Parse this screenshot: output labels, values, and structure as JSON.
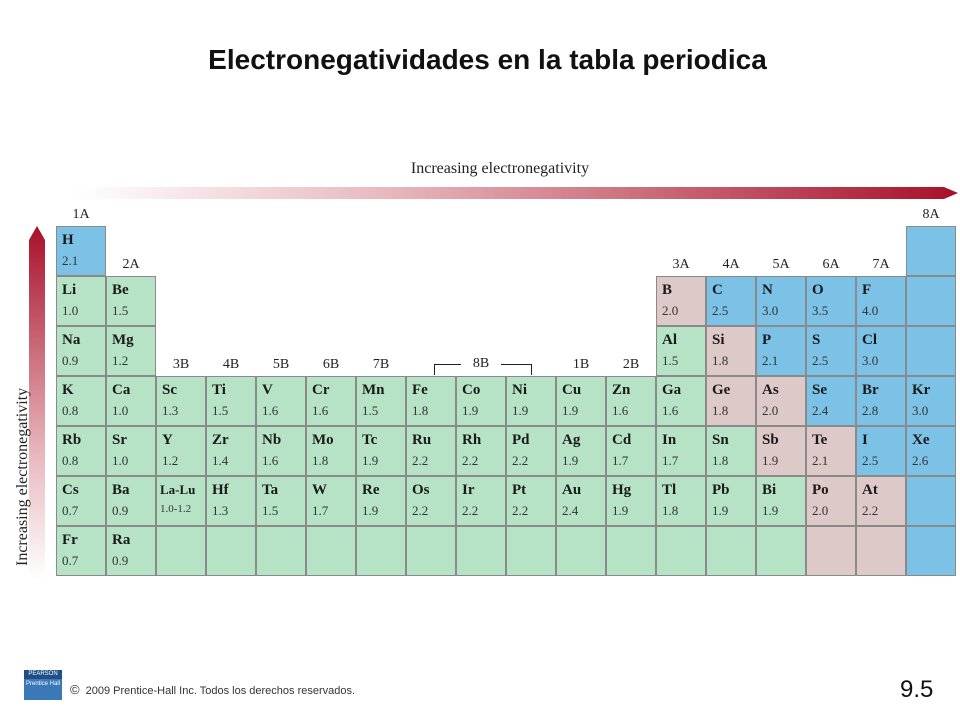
{
  "title": "Electronegatividades en la tabla periodica",
  "arrows": {
    "horizontal_label": "Increasing electronegativity",
    "vertical_label": "Increasing electronegativity",
    "color": "#a8102a"
  },
  "colors": {
    "green": "#b6e3c5",
    "blue": "#7cc2e6",
    "pink": "#dcc9c8"
  },
  "group_labels": [
    {
      "label": "1A",
      "col": 0,
      "row": -1
    },
    {
      "label": "2A",
      "col": 1,
      "row": 0
    },
    {
      "label": "3B",
      "col": 2,
      "row": 2
    },
    {
      "label": "4B",
      "col": 3,
      "row": 2
    },
    {
      "label": "5B",
      "col": 4,
      "row": 2
    },
    {
      "label": "6B",
      "col": 5,
      "row": 2
    },
    {
      "label": "7B",
      "col": 6,
      "row": 2
    },
    {
      "label": "1B",
      "col": 10,
      "row": 2
    },
    {
      "label": "2B",
      "col": 11,
      "row": 2
    },
    {
      "label": "3A",
      "col": 12,
      "row": 0
    },
    {
      "label": "4A",
      "col": 13,
      "row": 0
    },
    {
      "label": "5A",
      "col": 14,
      "row": 0
    },
    {
      "label": "6A",
      "col": 15,
      "row": 0
    },
    {
      "label": "7A",
      "col": 16,
      "row": 0
    },
    {
      "label": "8A",
      "col": 17,
      "row": -1
    }
  ],
  "bracket_label": "8B",
  "elements": [
    {
      "symbol": "H",
      "value": "2.1",
      "row": 0,
      "col": 0,
      "color": "blue"
    },
    {
      "symbol": "Li",
      "value": "1.0",
      "row": 1,
      "col": 0,
      "color": "green"
    },
    {
      "symbol": "Be",
      "value": "1.5",
      "row": 1,
      "col": 1,
      "color": "green"
    },
    {
      "symbol": "B",
      "value": "2.0",
      "row": 1,
      "col": 12,
      "color": "pink"
    },
    {
      "symbol": "C",
      "value": "2.5",
      "row": 1,
      "col": 13,
      "color": "blue"
    },
    {
      "symbol": "N",
      "value": "3.0",
      "row": 1,
      "col": 14,
      "color": "blue"
    },
    {
      "symbol": "O",
      "value": "3.5",
      "row": 1,
      "col": 15,
      "color": "blue"
    },
    {
      "symbol": "F",
      "value": "4.0",
      "row": 1,
      "col": 16,
      "color": "blue"
    },
    {
      "symbol": "Na",
      "value": "0.9",
      "row": 2,
      "col": 0,
      "color": "green"
    },
    {
      "symbol": "Mg",
      "value": "1.2",
      "row": 2,
      "col": 1,
      "color": "green"
    },
    {
      "symbol": "Al",
      "value": "1.5",
      "row": 2,
      "col": 12,
      "color": "green"
    },
    {
      "symbol": "Si",
      "value": "1.8",
      "row": 2,
      "col": 13,
      "color": "pink"
    },
    {
      "symbol": "P",
      "value": "2.1",
      "row": 2,
      "col": 14,
      "color": "blue"
    },
    {
      "symbol": "S",
      "value": "2.5",
      "row": 2,
      "col": 15,
      "color": "blue"
    },
    {
      "symbol": "Cl",
      "value": "3.0",
      "row": 2,
      "col": 16,
      "color": "blue"
    },
    {
      "symbol": "K",
      "value": "0.8",
      "row": 3,
      "col": 0,
      "color": "green"
    },
    {
      "symbol": "Ca",
      "value": "1.0",
      "row": 3,
      "col": 1,
      "color": "green"
    },
    {
      "symbol": "Sc",
      "value": "1.3",
      "row": 3,
      "col": 2,
      "color": "green"
    },
    {
      "symbol": "Ti",
      "value": "1.5",
      "row": 3,
      "col": 3,
      "color": "green"
    },
    {
      "symbol": "V",
      "value": "1.6",
      "row": 3,
      "col": 4,
      "color": "green"
    },
    {
      "symbol": "Cr",
      "value": "1.6",
      "row": 3,
      "col": 5,
      "color": "green"
    },
    {
      "symbol": "Mn",
      "value": "1.5",
      "row": 3,
      "col": 6,
      "color": "green"
    },
    {
      "symbol": "Fe",
      "value": "1.8",
      "row": 3,
      "col": 7,
      "color": "green"
    },
    {
      "symbol": "Co",
      "value": "1.9",
      "row": 3,
      "col": 8,
      "color": "green"
    },
    {
      "symbol": "Ni",
      "value": "1.9",
      "row": 3,
      "col": 9,
      "color": "green"
    },
    {
      "symbol": "Cu",
      "value": "1.9",
      "row": 3,
      "col": 10,
      "color": "green"
    },
    {
      "symbol": "Zn",
      "value": "1.6",
      "row": 3,
      "col": 11,
      "color": "green"
    },
    {
      "symbol": "Ga",
      "value": "1.6",
      "row": 3,
      "col": 12,
      "color": "green"
    },
    {
      "symbol": "Ge",
      "value": "1.8",
      "row": 3,
      "col": 13,
      "color": "pink"
    },
    {
      "symbol": "As",
      "value": "2.0",
      "row": 3,
      "col": 14,
      "color": "pink"
    },
    {
      "symbol": "Se",
      "value": "2.4",
      "row": 3,
      "col": 15,
      "color": "blue"
    },
    {
      "symbol": "Br",
      "value": "2.8",
      "row": 3,
      "col": 16,
      "color": "blue"
    },
    {
      "symbol": "Kr",
      "value": "3.0",
      "row": 3,
      "col": 17,
      "color": "blue"
    },
    {
      "symbol": "Rb",
      "value": "0.8",
      "row": 4,
      "col": 0,
      "color": "green"
    },
    {
      "symbol": "Sr",
      "value": "1.0",
      "row": 4,
      "col": 1,
      "color": "green"
    },
    {
      "symbol": "Y",
      "value": "1.2",
      "row": 4,
      "col": 2,
      "color": "green"
    },
    {
      "symbol": "Zr",
      "value": "1.4",
      "row": 4,
      "col": 3,
      "color": "green"
    },
    {
      "symbol": "Nb",
      "value": "1.6",
      "row": 4,
      "col": 4,
      "color": "green"
    },
    {
      "symbol": "Mo",
      "value": "1.8",
      "row": 4,
      "col": 5,
      "color": "green"
    },
    {
      "symbol": "Tc",
      "value": "1.9",
      "row": 4,
      "col": 6,
      "color": "green"
    },
    {
      "symbol": "Ru",
      "value": "2.2",
      "row": 4,
      "col": 7,
      "color": "green"
    },
    {
      "symbol": "Rh",
      "value": "2.2",
      "row": 4,
      "col": 8,
      "color": "green"
    },
    {
      "symbol": "Pd",
      "value": "2.2",
      "row": 4,
      "col": 9,
      "color": "green"
    },
    {
      "symbol": "Ag",
      "value": "1.9",
      "row": 4,
      "col": 10,
      "color": "green"
    },
    {
      "symbol": "Cd",
      "value": "1.7",
      "row": 4,
      "col": 11,
      "color": "green"
    },
    {
      "symbol": "In",
      "value": "1.7",
      "row": 4,
      "col": 12,
      "color": "green"
    },
    {
      "symbol": "Sn",
      "value": "1.8",
      "row": 4,
      "col": 13,
      "color": "green"
    },
    {
      "symbol": "Sb",
      "value": "1.9",
      "row": 4,
      "col": 14,
      "color": "pink"
    },
    {
      "symbol": "Te",
      "value": "2.1",
      "row": 4,
      "col": 15,
      "color": "pink"
    },
    {
      "symbol": "I",
      "value": "2.5",
      "row": 4,
      "col": 16,
      "color": "blue"
    },
    {
      "symbol": "Xe",
      "value": "2.6",
      "row": 4,
      "col": 17,
      "color": "blue"
    },
    {
      "symbol": "Cs",
      "value": "0.7",
      "row": 5,
      "col": 0,
      "color": "green"
    },
    {
      "symbol": "Ba",
      "value": "0.9",
      "row": 5,
      "col": 1,
      "color": "green"
    },
    {
      "symbol": "La-Lu",
      "value": "1.0-1.2",
      "row": 5,
      "col": 2,
      "color": "green",
      "small": true
    },
    {
      "symbol": "Hf",
      "value": "1.3",
      "row": 5,
      "col": 3,
      "color": "green"
    },
    {
      "symbol": "Ta",
      "value": "1.5",
      "row": 5,
      "col": 4,
      "color": "green"
    },
    {
      "symbol": "W",
      "value": "1.7",
      "row": 5,
      "col": 5,
      "color": "green"
    },
    {
      "symbol": "Re",
      "value": "1.9",
      "row": 5,
      "col": 6,
      "color": "green"
    },
    {
      "symbol": "Os",
      "value": "2.2",
      "row": 5,
      "col": 7,
      "color": "green"
    },
    {
      "symbol": "Ir",
      "value": "2.2",
      "row": 5,
      "col": 8,
      "color": "green"
    },
    {
      "symbol": "Pt",
      "value": "2.2",
      "row": 5,
      "col": 9,
      "color": "green"
    },
    {
      "symbol": "Au",
      "value": "2.4",
      "row": 5,
      "col": 10,
      "color": "green"
    },
    {
      "symbol": "Hg",
      "value": "1.9",
      "row": 5,
      "col": 11,
      "color": "green"
    },
    {
      "symbol": "Tl",
      "value": "1.8",
      "row": 5,
      "col": 12,
      "color": "green"
    },
    {
      "symbol": "Pb",
      "value": "1.9",
      "row": 5,
      "col": 13,
      "color": "green"
    },
    {
      "symbol": "Bi",
      "value": "1.9",
      "row": 5,
      "col": 14,
      "color": "green"
    },
    {
      "symbol": "Po",
      "value": "2.0",
      "row": 5,
      "col": 15,
      "color": "pink"
    },
    {
      "symbol": "At",
      "value": "2.2",
      "row": 5,
      "col": 16,
      "color": "pink"
    },
    {
      "symbol": "",
      "value": "",
      "row": 5,
      "col": 17,
      "color": "blue"
    },
    {
      "symbol": "Fr",
      "value": "0.7",
      "row": 6,
      "col": 0,
      "color": "green"
    },
    {
      "symbol": "Ra",
      "value": "0.9",
      "row": 6,
      "col": 1,
      "color": "green"
    },
    {
      "symbol": "",
      "value": "",
      "row": 6,
      "col": 2,
      "color": "green"
    },
    {
      "symbol": "",
      "value": "",
      "row": 6,
      "col": 3,
      "color": "green"
    },
    {
      "symbol": "",
      "value": "",
      "row": 6,
      "col": 4,
      "color": "green"
    },
    {
      "symbol": "",
      "value": "",
      "row": 6,
      "col": 5,
      "color": "green"
    },
    {
      "symbol": "",
      "value": "",
      "row": 6,
      "col": 6,
      "color": "green"
    },
    {
      "symbol": "",
      "value": "",
      "row": 6,
      "col": 7,
      "color": "green"
    },
    {
      "symbol": "",
      "value": "",
      "row": 6,
      "col": 8,
      "color": "green"
    },
    {
      "symbol": "",
      "value": "",
      "row": 6,
      "col": 9,
      "color": "green"
    },
    {
      "symbol": "",
      "value": "",
      "row": 6,
      "col": 10,
      "color": "green"
    },
    {
      "symbol": "",
      "value": "",
      "row": 6,
      "col": 11,
      "color": "green"
    },
    {
      "symbol": "",
      "value": "",
      "row": 6,
      "col": 12,
      "color": "green"
    },
    {
      "symbol": "",
      "value": "",
      "row": 6,
      "col": 13,
      "color": "green"
    },
    {
      "symbol": "",
      "value": "",
      "row": 6,
      "col": 14,
      "color": "green"
    },
    {
      "symbol": "",
      "value": "",
      "row": 6,
      "col": 15,
      "color": "pink"
    },
    {
      "symbol": "",
      "value": "",
      "row": 6,
      "col": 16,
      "color": "pink"
    },
    {
      "symbol": "",
      "value": "",
      "row": 6,
      "col": 17,
      "color": "blue"
    }
  ],
  "noble_gas_column_spacers": [
    {
      "row": 0,
      "col": 17,
      "color": "blue"
    },
    {
      "row": 1,
      "col": 17,
      "color": "blue"
    },
    {
      "row": 2,
      "col": 17,
      "color": "blue"
    }
  ],
  "footer": {
    "logo_top": "PEARSON",
    "logo_bottom": "Prentice Hall",
    "copyright_symbol": "©",
    "copyright": "2009 Prentice-Hall Inc.  Todos los derechos reservados.",
    "slide_number": "9.5"
  }
}
